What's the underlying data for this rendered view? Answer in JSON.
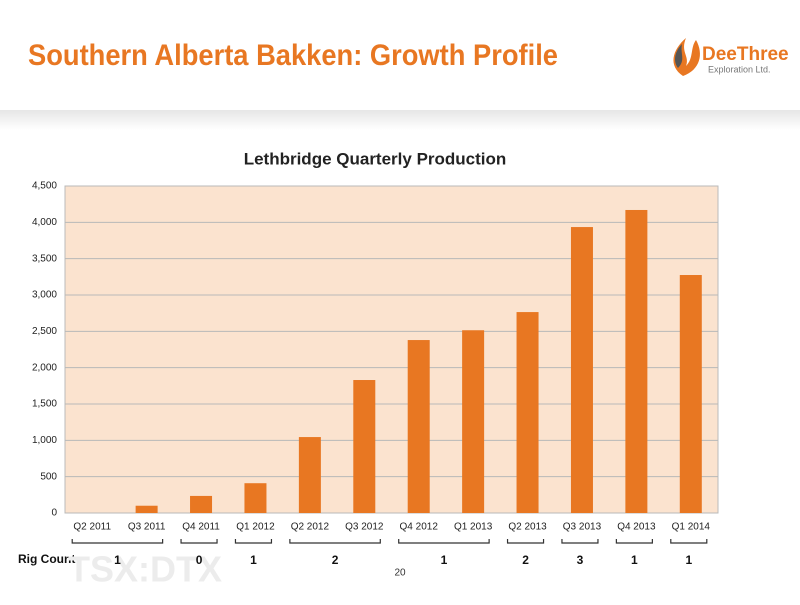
{
  "header": {
    "title": "Southern Alberta Bakken: Growth Profile",
    "logo": {
      "name": "DeeThree",
      "tagline": "Exploration Ltd."
    }
  },
  "chart_data": {
    "type": "bar",
    "title": "Lethbridge Quarterly Production",
    "categories": [
      "Q2 2011",
      "Q3 2011",
      "Q4 2011",
      "Q1 2012",
      "Q2 2012",
      "Q3 2012",
      "Q4 2012",
      "Q1 2013",
      "Q2 2013",
      "Q3 2013",
      "Q4 2013",
      "Q1 2014"
    ],
    "values": [
      0,
      100,
      235,
      410,
      1045,
      1830,
      2380,
      2515,
      2765,
      3935,
      4170,
      3275
    ],
    "color": "#e87722",
    "plot_color": "#fbe3cf",
    "ylim": [
      0,
      4500
    ],
    "yticks": [
      0,
      500,
      {
        "value": 1000,
        "label": "1,000"
      },
      {
        "value": 1500,
        "label": "1,500"
      },
      {
        "value": 2000,
        "label": "2,000"
      },
      {
        "value": 2500,
        "label": "2,500"
      },
      {
        "value": 3000,
        "label": "3,000"
      },
      {
        "value": 3500,
        "label": "3,500"
      },
      {
        "value": 4000,
        "label": "4,000"
      },
      {
        "value": 4500,
        "label": "4,500"
      }
    ],
    "grid": true,
    "rig_count": {
      "label": "Rig Count",
      "groups": [
        {
          "count": 1,
          "quarters": [
            "Q2 2011",
            "Q3 2011"
          ]
        },
        {
          "count": 0,
          "quarters": [
            "Q4 2011"
          ]
        },
        {
          "count": 1,
          "quarters": [
            "Q1 2012"
          ]
        },
        {
          "count": 2,
          "quarters": [
            "Q2 2012",
            "Q3 2012"
          ]
        },
        {
          "count": 1,
          "quarters": [
            "Q4 2012",
            "Q1 2013"
          ]
        },
        {
          "count": 2,
          "quarters": [
            "Q2 2013"
          ]
        },
        {
          "count": 3,
          "quarters": [
            "Q3 2013"
          ]
        },
        {
          "count": 1,
          "quarters": [
            "Q4 2013"
          ]
        },
        {
          "count": 1,
          "quarters": [
            "Q1 2014"
          ]
        }
      ]
    }
  },
  "footer": {
    "ticker": "TSX:DTX",
    "page": "20"
  }
}
